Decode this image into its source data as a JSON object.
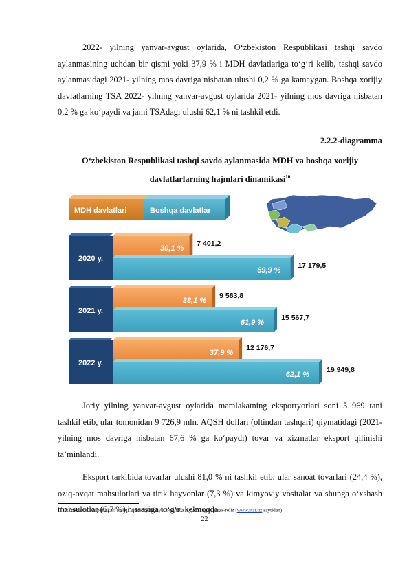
{
  "paragraph1": "2022- yilning yanvar-avgust oylarida, O‘zbekiston Respublikasi tashqi savdo aylanmasining uchdan bir qismi yoki 37,9 % i MDH davlatlariga to‘g‘ri kelib, tashqi savdo aylanmasidagi 2021- yilning mos davriga nisbatan ulushi 0,2 % ga kamaygan. Boshqa xorijiy davlatlarning TSA 2022- yilning yanvar-avgust oylarida 2021- yilning mos davriga nisbatan 0,2 % ga ko‘paydi va jami TSAdagi ulushi 62,1 % ni tashkil etdi.",
  "diagram_number": "2.2.2-diagramma",
  "diagram_title": "O‘zbekiston Respublikasi tashqi savdo aylanmasida MDH va boshqa xorijiy davlatlarlarning hajmlari dinamikasi",
  "diagram_title_footnote_ref": "10",
  "chart_data": {
    "type": "bar",
    "orientation": "horizontal",
    "stacked": false,
    "categories": [
      "2020 y.",
      "2021 y.",
      "2022 y."
    ],
    "series": [
      {
        "name": "MDH davlatlari",
        "values": [
          7401.2,
          9583.8,
          12176.7
        ],
        "value_labels": [
          "7 401,2",
          "9 583,8",
          "12 176,7"
        ],
        "share_labels": [
          "30,1 %",
          "38,1 %",
          "37,9 %"
        ],
        "color": "#f2964a"
      },
      {
        "name": "Boshqa davlatlar",
        "values": [
          17179.5,
          15567.7,
          19949.8
        ],
        "value_labels": [
          "17 179,5",
          "15 567,7",
          "19 949,8"
        ],
        "share_labels": [
          "69,9 %",
          "61,9 %",
          "62,1 %"
        ],
        "color": "#4aaec8"
      }
    ],
    "legend_position": "top-left",
    "category_box_color": "#1f4373",
    "map_icon": "cis-map-icon"
  },
  "paragraph2": "Joriy yilning yanvar-avgust oylarida mamlakatning eksportyorlari soni 5 969 tani tashkil etib, ular tomonidan 9 726,9 mln. AQSH dollari (oltindan tashqari) qiymatidagi (2021- yilning mos davriga nisbatan 67,6 % ga ko‘paydi) tovar va xizmatlar eksport qilinishi taʼminlandi.",
  "paragraph3": "Eksport tarkibida tovarlar ulushi 81,0 % ni tashkil etib, ular sanoat tovarlari (24,4 %), oziq-ovqat mahsulotlari va tirik hayvonlar (7,3 %) va kimyoviy vositalar va shunga o‘xshash mahsulotlar (6,7 %) hissasiga to‘g‘ri kelmoqda.",
  "footnote": {
    "number": "10",
    "text_before": " O‘zbekiston Respublikasi tashqi iqtisodiy faoliyat bo‘yicha tayyorlangan press-reliz (",
    "link": "www.stat.uz",
    "text_after": " saytidan)"
  },
  "page_number": "22"
}
